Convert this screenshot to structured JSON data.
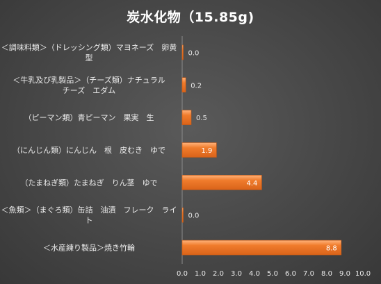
{
  "chart_data": {
    "type": "bar",
    "orientation": "horizontal",
    "title": "炭水化物（15.85g)",
    "categories": [
      [
        "＜調味料類＞（ドレッシング類）マヨネーズ　卵黄",
        "型"
      ],
      [
        "＜牛乳及び乳製品＞（チーズ類）ナチュラル",
        "チーズ　エダム"
      ],
      [
        "（ピーマン類）青ピーマン　果実　生"
      ],
      [
        "（にんじん類）にんじん　根　皮むき　ゆで"
      ],
      [
        "（たまねぎ類）たまねぎ　りん茎　ゆで"
      ],
      [
        "＜魚類＞（まぐろ類）缶詰　油漬　フレーク　ライ",
        "ト"
      ],
      [
        "＜水産練り製品＞焼き竹輪"
      ]
    ],
    "values": [
      0.0,
      0.2,
      0.5,
      1.9,
      4.4,
      0.0,
      8.8
    ],
    "data_labels": [
      "0.0",
      "0.2",
      "0.5",
      "1.9",
      "4.4",
      "0.0",
      "8.8"
    ],
    "x_ticks": [
      "0.0",
      "1.0",
      "2.0",
      "3.0",
      "4.0",
      "5.0",
      "6.0",
      "7.0",
      "8.0",
      "9.0",
      "10.0"
    ],
    "xlim": [
      0,
      10
    ],
    "xlabel": "",
    "ylabel": "",
    "grid": false,
    "legend": "none",
    "colors": {
      "bar": "#f07c2c",
      "bar_edge": "#ffb27a",
      "label_inside": "#ffffff",
      "label_outside": "#e8e8e8"
    }
  }
}
